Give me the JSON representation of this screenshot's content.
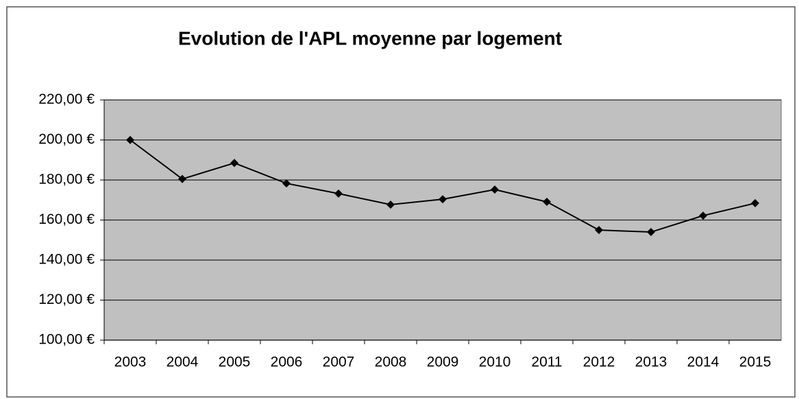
{
  "chart_data": {
    "type": "line",
    "title": "Evolution de l'APL moyenne par logement",
    "categories": [
      "2003",
      "2004",
      "2005",
      "2006",
      "2007",
      "2008",
      "2009",
      "2010",
      "2011",
      "2012",
      "2013",
      "2014",
      "2015"
    ],
    "series": [
      {
        "color": "#000000",
        "values": [
          200,
          180.5,
          188.5,
          178.3,
          173.2,
          167.7,
          170.4,
          175.2,
          169.1,
          155,
          154,
          162.2,
          168.4
        ]
      }
    ],
    "ylim": [
      100,
      220
    ],
    "yticks": [
      {
        "value": 100,
        "label": "100,00 €"
      },
      {
        "value": 120,
        "label": "120,00 €"
      },
      {
        "value": 140,
        "label": "140,00 €"
      },
      {
        "value": 160,
        "label": "160,00 €"
      },
      {
        "value": 180,
        "label": "180,00 €"
      },
      {
        "value": 200,
        "label": "200,00 €"
      },
      {
        "value": 220,
        "label": "220,00 €"
      }
    ],
    "grid": true
  }
}
